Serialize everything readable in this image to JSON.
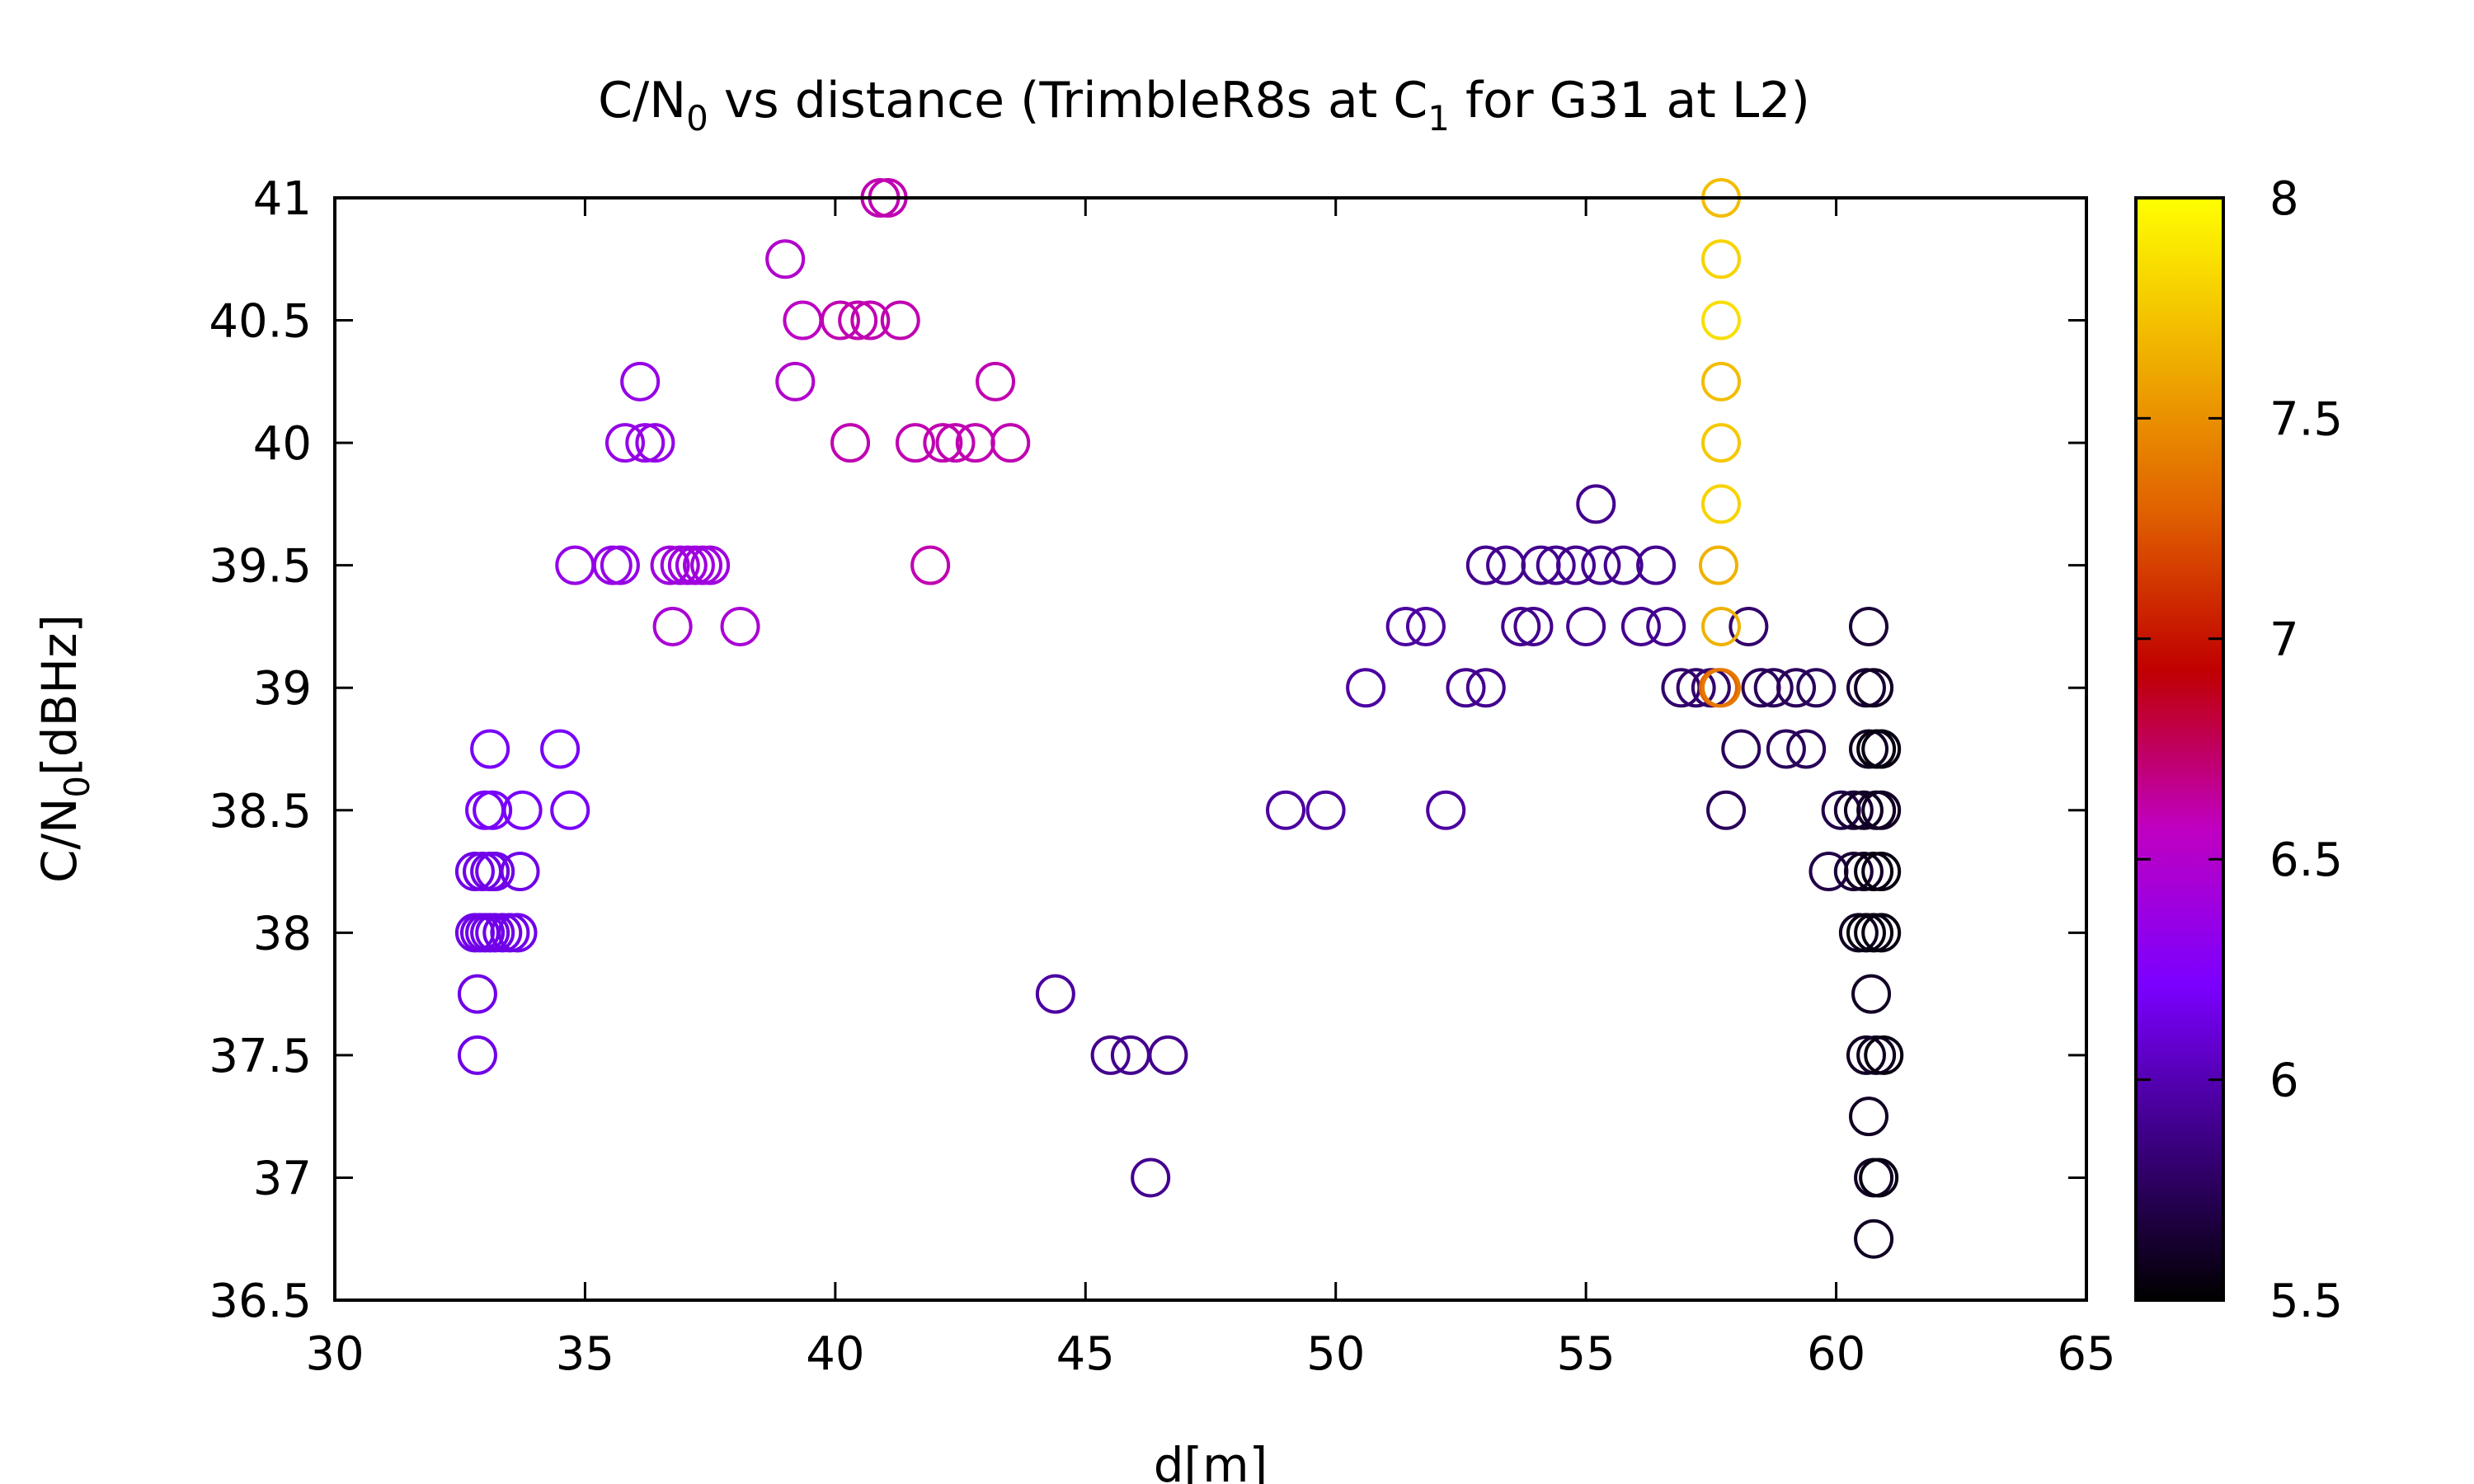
{
  "chart_data": {
    "type": "scatter",
    "title": {
      "pre": "C/N",
      "sub": "0",
      "mid": " vs distance (TrimbleR8s at C",
      "sub2": "1",
      "post": " for G31 at L2)"
    },
    "xlabel": "d[m]",
    "ylabel": {
      "pre": "C/N",
      "sub": "0",
      "post": "[dBHz]"
    },
    "xlim": [
      30,
      65
    ],
    "ylim": [
      36.5,
      41
    ],
    "xticks": [
      "30",
      "35",
      "40",
      "45",
      "50",
      "55",
      "60",
      "65"
    ],
    "yticks": [
      "36.5",
      "37",
      "37.5",
      "38",
      "38.5",
      "39",
      "39.5",
      "40",
      "40.5",
      "41"
    ],
    "colorbar": {
      "range": [
        5.5,
        8
      ],
      "ticks": [
        "5.5",
        "6",
        "6.5",
        "7",
        "7.5",
        "8"
      ],
      "palette": [
        "#000000",
        "#3b0080",
        "#7b00ff",
        "#c000c0",
        "#c00000",
        "#e06000",
        "#f0b000",
        "#ffff00"
      ]
    },
    "grid": false,
    "marker": "open-circle",
    "points": [
      [
        32.85,
        37.5,
        6.15
      ],
      [
        32.85,
        37.75,
        6.15
      ],
      [
        32.8,
        38.0,
        6.15
      ],
      [
        32.9,
        38.0,
        6.15
      ],
      [
        33.0,
        38.0,
        6.15
      ],
      [
        33.1,
        38.0,
        6.15
      ],
      [
        33.2,
        38.0,
        6.15
      ],
      [
        33.35,
        38.0,
        6.15
      ],
      [
        33.5,
        38.0,
        6.15
      ],
      [
        33.65,
        38.0,
        6.15
      ],
      [
        32.8,
        38.25,
        6.15
      ],
      [
        32.95,
        38.25,
        6.15
      ],
      [
        33.1,
        38.25,
        6.15
      ],
      [
        33.2,
        38.25,
        6.15
      ],
      [
        33.7,
        38.25,
        6.15
      ],
      [
        33.0,
        38.5,
        6.2
      ],
      [
        33.15,
        38.5,
        6.2
      ],
      [
        33.75,
        38.5,
        6.2
      ],
      [
        34.7,
        38.5,
        6.2
      ],
      [
        33.1,
        38.75,
        6.2
      ],
      [
        34.5,
        38.75,
        6.2
      ],
      [
        34.8,
        39.5,
        6.35
      ],
      [
        35.55,
        39.5,
        6.35
      ],
      [
        35.7,
        39.5,
        6.35
      ],
      [
        36.7,
        39.5,
        6.4
      ],
      [
        36.9,
        39.5,
        6.4
      ],
      [
        37.05,
        39.5,
        6.4
      ],
      [
        37.2,
        39.5,
        6.4
      ],
      [
        37.35,
        39.5,
        6.4
      ],
      [
        37.5,
        39.5,
        6.4
      ],
      [
        36.75,
        39.25,
        6.45
      ],
      [
        38.1,
        39.25,
        6.45
      ],
      [
        35.8,
        40.0,
        6.35
      ],
      [
        36.2,
        40.0,
        6.35
      ],
      [
        36.4,
        40.0,
        6.35
      ],
      [
        36.1,
        40.25,
        6.35
      ],
      [
        39.0,
        40.75,
        6.5
      ],
      [
        39.2,
        40.25,
        6.5
      ],
      [
        39.35,
        40.5,
        6.55
      ],
      [
        40.1,
        40.5,
        6.6
      ],
      [
        40.45,
        40.5,
        6.6
      ],
      [
        40.7,
        40.5,
        6.6
      ],
      [
        41.3,
        40.5,
        6.6
      ],
      [
        40.9,
        41.0,
        6.6
      ],
      [
        41.05,
        41.0,
        6.6
      ],
      [
        40.3,
        40.0,
        6.6
      ],
      [
        41.6,
        40.0,
        6.6
      ],
      [
        42.15,
        40.0,
        6.6
      ],
      [
        42.4,
        40.0,
        6.6
      ],
      [
        42.8,
        40.0,
        6.6
      ],
      [
        43.5,
        40.0,
        6.6
      ],
      [
        43.2,
        40.25,
        6.6
      ],
      [
        41.9,
        39.5,
        6.6
      ],
      [
        44.4,
        37.75,
        5.95
      ],
      [
        45.5,
        37.5,
        5.9
      ],
      [
        45.9,
        37.5,
        5.9
      ],
      [
        46.65,
        37.5,
        5.9
      ],
      [
        46.3,
        37.0,
        5.9
      ],
      [
        49.0,
        38.5,
        5.95
      ],
      [
        49.8,
        38.5,
        5.95
      ],
      [
        52.2,
        38.5,
        5.95
      ],
      [
        50.6,
        39.0,
        5.95
      ],
      [
        52.6,
        39.0,
        5.9
      ],
      [
        53.0,
        39.0,
        5.9
      ],
      [
        51.4,
        39.25,
        5.95
      ],
      [
        51.8,
        39.25,
        5.95
      ],
      [
        53.0,
        39.5,
        5.9
      ],
      [
        53.4,
        39.5,
        5.9
      ],
      [
        54.1,
        39.5,
        5.9
      ],
      [
        54.4,
        39.5,
        5.9
      ],
      [
        54.8,
        39.5,
        5.9
      ],
      [
        55.3,
        39.5,
        5.9
      ],
      [
        55.75,
        39.5,
        5.9
      ],
      [
        56.4,
        39.5,
        5.9
      ],
      [
        53.7,
        39.25,
        5.9
      ],
      [
        53.95,
        39.25,
        5.9
      ],
      [
        55.0,
        39.25,
        5.9
      ],
      [
        56.1,
        39.25,
        5.9
      ],
      [
        56.6,
        39.25,
        5.9
      ],
      [
        58.25,
        39.25,
        5.8
      ],
      [
        55.2,
        39.75,
        5.9
      ],
      [
        56.9,
        39.0,
        5.8
      ],
      [
        57.2,
        39.0,
        5.8
      ],
      [
        57.5,
        39.0,
        5.8
      ],
      [
        58.5,
        39.0,
        5.75
      ],
      [
        58.75,
        39.0,
        5.75
      ],
      [
        59.2,
        39.0,
        5.75
      ],
      [
        59.6,
        39.0,
        5.75
      ],
      [
        58.1,
        38.75,
        5.75
      ],
      [
        59.0,
        38.75,
        5.75
      ],
      [
        59.4,
        38.75,
        5.75
      ],
      [
        57.8,
        38.5,
        5.75
      ],
      [
        57.65,
        39.0,
        7.3
      ],
      [
        57.7,
        39.0,
        7.4
      ],
      [
        57.7,
        39.25,
        7.65
      ],
      [
        57.65,
        39.5,
        7.65
      ],
      [
        57.7,
        39.75,
        7.8
      ],
      [
        57.7,
        40.0,
        7.75
      ],
      [
        57.7,
        40.25,
        7.7
      ],
      [
        57.7,
        40.5,
        7.85
      ],
      [
        57.7,
        40.75,
        7.8
      ],
      [
        57.7,
        41.0,
        7.7
      ],
      [
        59.85,
        38.25,
        5.7
      ],
      [
        60.1,
        38.5,
        5.7
      ],
      [
        60.35,
        38.5,
        5.65
      ],
      [
        60.55,
        38.5,
        5.6
      ],
      [
        60.8,
        38.5,
        5.6
      ],
      [
        60.9,
        38.5,
        5.6
      ],
      [
        60.35,
        38.25,
        5.65
      ],
      [
        60.55,
        38.25,
        5.6
      ],
      [
        60.75,
        38.25,
        5.55
      ],
      [
        60.9,
        38.25,
        5.55
      ],
      [
        60.45,
        38.0,
        5.6
      ],
      [
        60.6,
        38.0,
        5.55
      ],
      [
        60.75,
        38.0,
        5.55
      ],
      [
        60.9,
        38.0,
        5.55
      ],
      [
        60.6,
        39.0,
        5.65
      ],
      [
        60.75,
        39.0,
        5.6
      ],
      [
        60.65,
        38.75,
        5.6
      ],
      [
        60.8,
        38.75,
        5.55
      ],
      [
        60.9,
        38.75,
        5.55
      ],
      [
        60.65,
        39.25,
        5.65
      ],
      [
        60.7,
        37.75,
        5.6
      ],
      [
        60.6,
        37.5,
        5.6
      ],
      [
        60.8,
        37.5,
        5.6
      ],
      [
        60.95,
        37.5,
        5.55
      ],
      [
        60.65,
        37.25,
        5.6
      ],
      [
        60.75,
        37.0,
        5.6
      ],
      [
        60.85,
        37.0,
        5.55
      ],
      [
        60.75,
        36.75,
        5.6
      ]
    ]
  }
}
